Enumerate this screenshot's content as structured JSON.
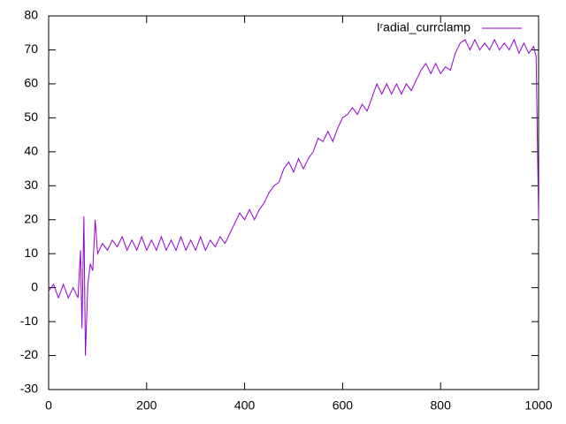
{
  "chart_data": {
    "type": "line",
    "x": [
      0,
      10,
      20,
      30,
      40,
      50,
      60,
      65,
      68,
      72,
      75,
      80,
      85,
      90,
      95,
      100,
      110,
      120,
      130,
      140,
      150,
      160,
      170,
      180,
      190,
      200,
      210,
      220,
      230,
      240,
      250,
      260,
      270,
      280,
      290,
      300,
      310,
      320,
      330,
      340,
      350,
      360,
      370,
      380,
      390,
      400,
      410,
      420,
      430,
      440,
      450,
      460,
      470,
      480,
      490,
      500,
      510,
      520,
      530,
      540,
      550,
      560,
      570,
      580,
      590,
      600,
      610,
      620,
      630,
      640,
      650,
      660,
      670,
      680,
      690,
      700,
      710,
      720,
      730,
      740,
      750,
      760,
      770,
      780,
      790,
      800,
      810,
      820,
      830,
      840,
      850,
      860,
      870,
      880,
      890,
      900,
      910,
      920,
      930,
      940,
      950,
      960,
      970,
      980,
      990,
      995,
      1000
    ],
    "series": [
      {
        "name": "Iʳadial_currclamp",
        "color": "#9400d3",
        "values": [
          -1,
          1,
          -3,
          1,
          -3,
          0,
          -3,
          11,
          -12,
          21,
          -20,
          1,
          7,
          5,
          20,
          10,
          13,
          11,
          14,
          12,
          15,
          11,
          14,
          11,
          15,
          11,
          14,
          11,
          15,
          11,
          14,
          11,
          15,
          11,
          14,
          11,
          15,
          11,
          14,
          12,
          15,
          13,
          16,
          19,
          22,
          20,
          23,
          20,
          23,
          25,
          28,
          30,
          31,
          35,
          37,
          34,
          38,
          35,
          38,
          40,
          44,
          43,
          46,
          43,
          47,
          50,
          51,
          53,
          51,
          54,
          52,
          56,
          60,
          57,
          60,
          57,
          60,
          57,
          60,
          58,
          61,
          64,
          66,
          63,
          66,
          63,
          65,
          64,
          69,
          72,
          73,
          70,
          73,
          70,
          72,
          70,
          73,
          70,
          72,
          70,
          73,
          69,
          72,
          69,
          71,
          68,
          20
        ]
      }
    ],
    "xlim": [
      0,
      1000
    ],
    "xticks": [
      0,
      200,
      400,
      600,
      800,
      1000
    ],
    "ylim": [
      -30,
      80
    ],
    "yticks": [
      -30,
      -20,
      -10,
      0,
      10,
      20,
      30,
      40,
      50,
      60,
      70,
      80
    ],
    "legend": "top-right"
  }
}
